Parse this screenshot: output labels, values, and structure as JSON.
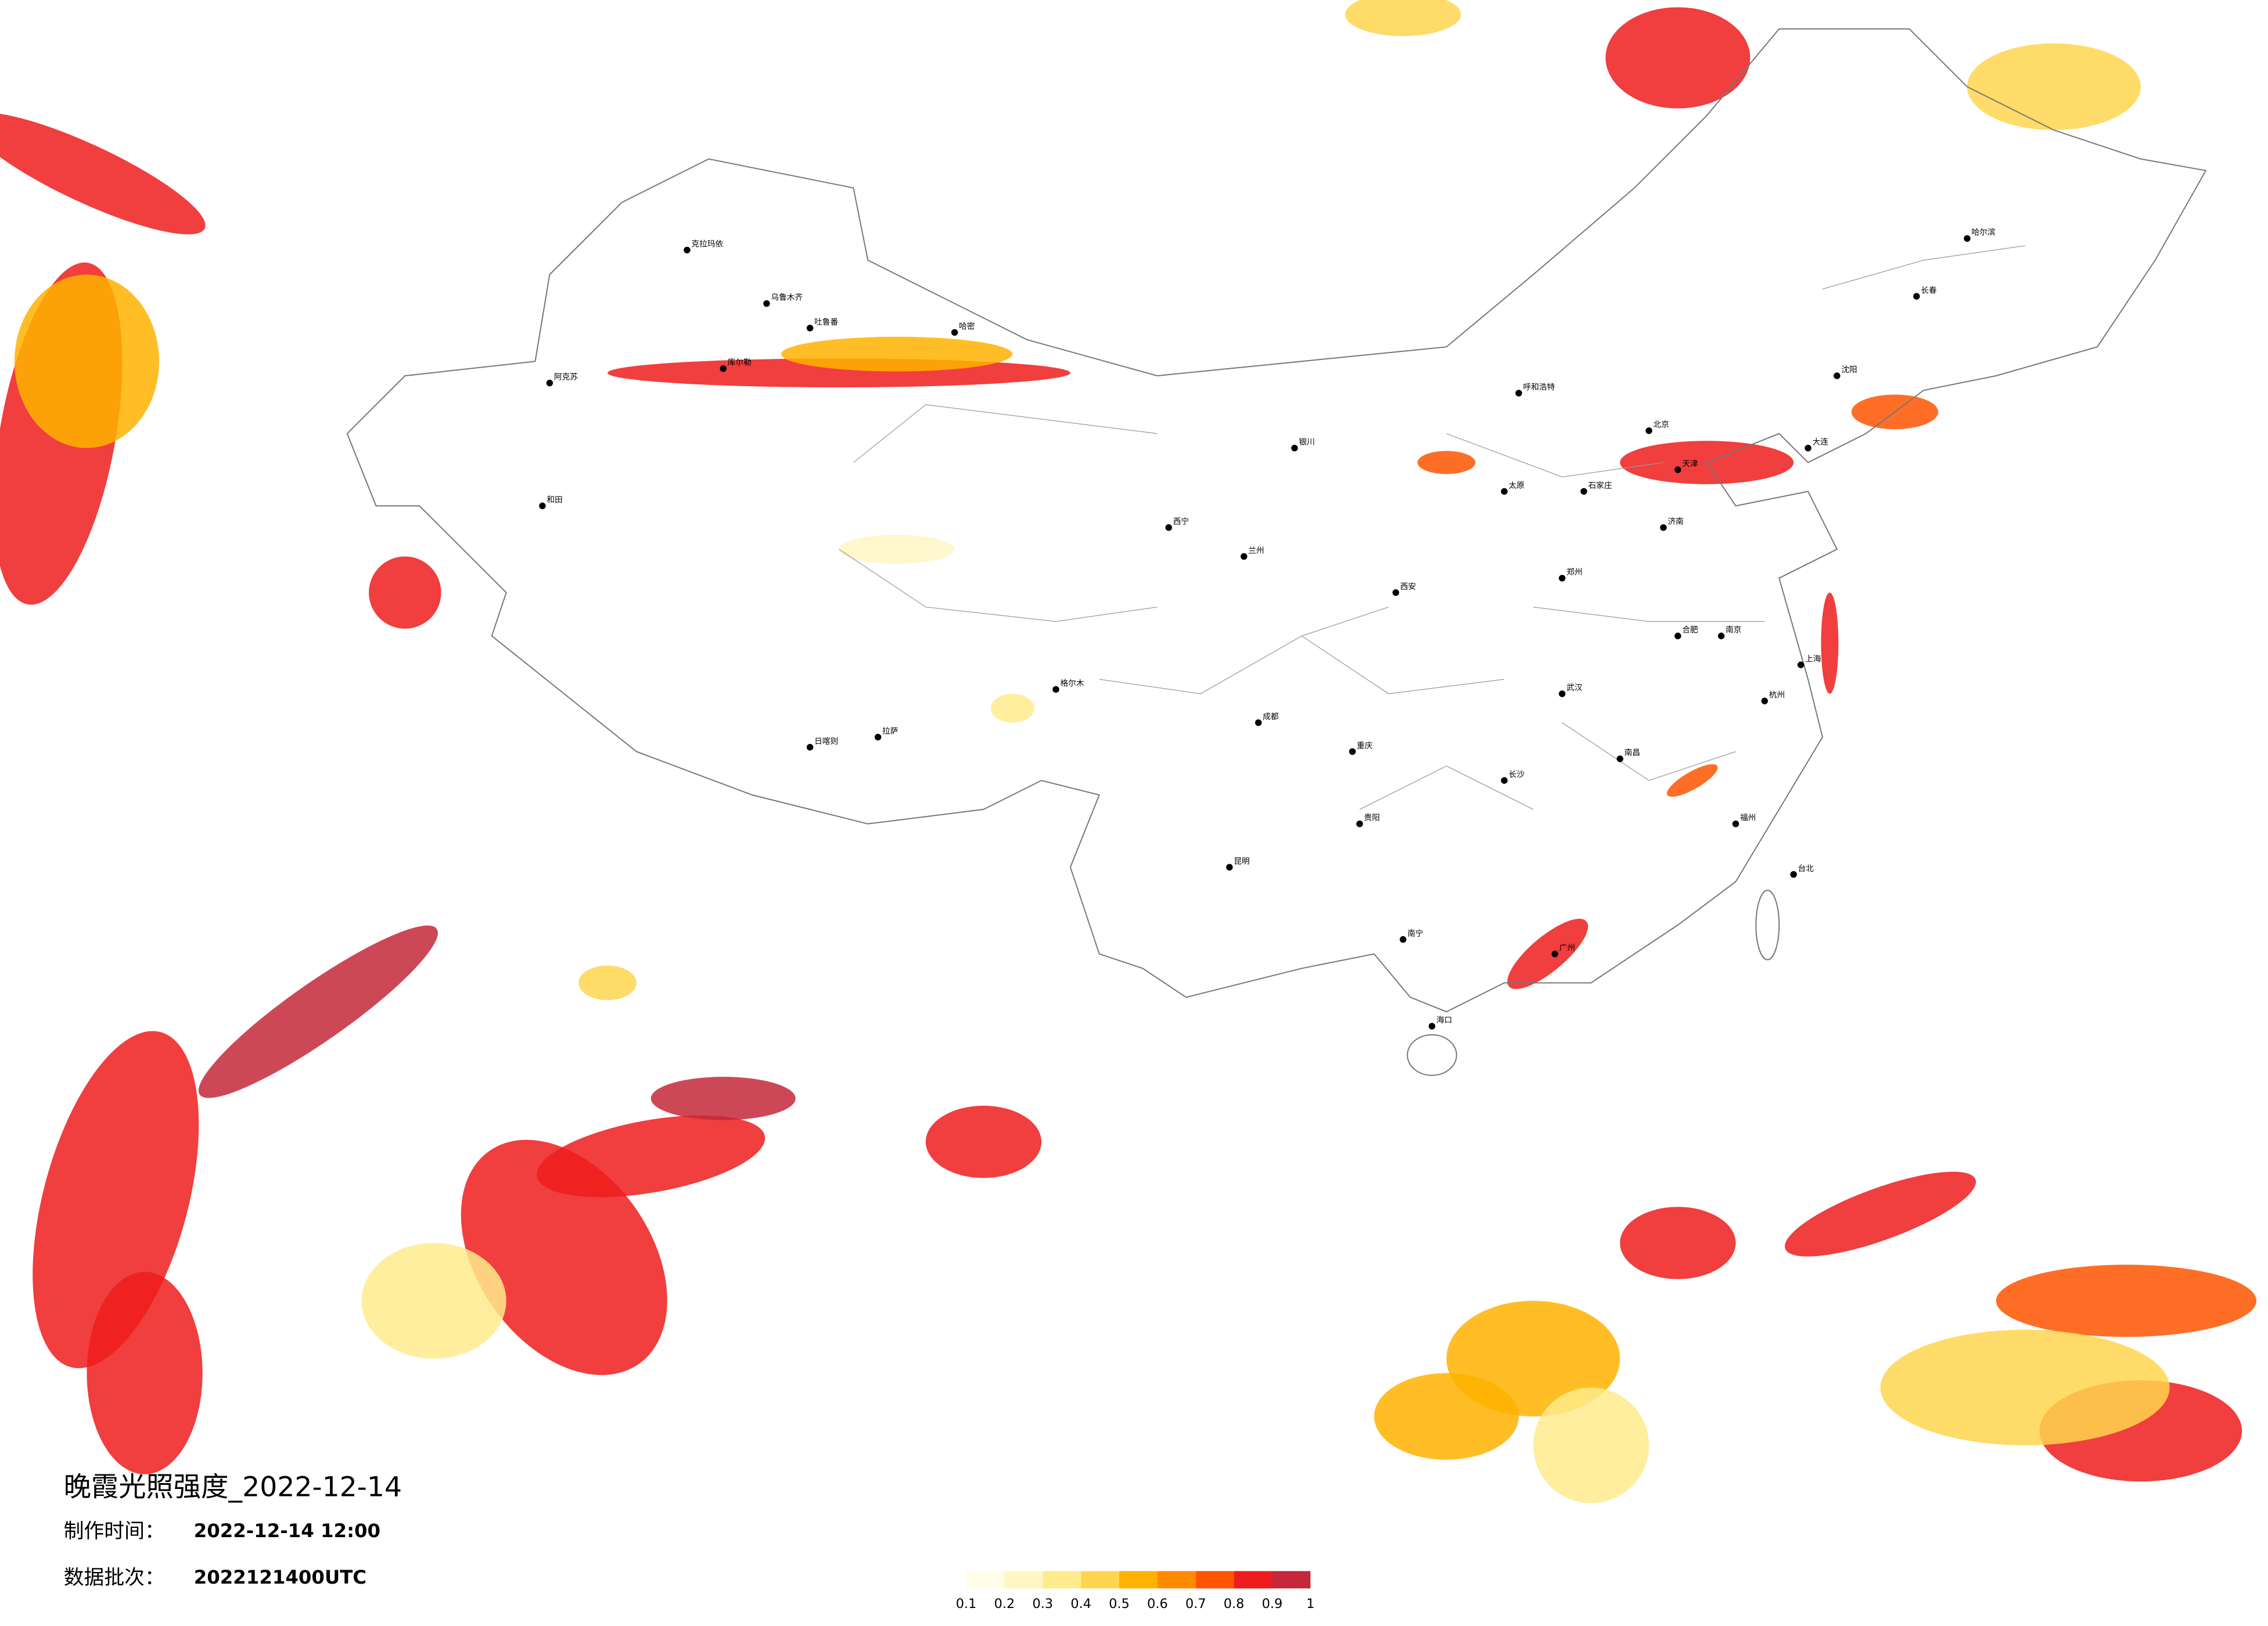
{
  "title": "晚霞光照强度_2022-12-14",
  "info": [
    {
      "label": "制作时间：",
      "value": "2022-12-14 12:00"
    },
    {
      "label": "数据批次：",
      "value": "2022121400UTC"
    }
  ],
  "legend": {
    "colors": [
      "#fffde6",
      "#fff6c4",
      "#ffeb8c",
      "#ffd54f",
      "#ffb300",
      "#ff8a00",
      "#ff5500",
      "#ee1c1c",
      "#c4283a"
    ],
    "ticks": [
      0.1,
      0.2,
      0.3,
      0.4,
      0.5,
      0.6,
      0.7,
      0.8,
      0.9,
      1
    ]
  },
  "cities": [
    "乌鲁木齐",
    "克拉玛依",
    "哈密",
    "吐鲁番",
    "库尔勒",
    "阿克苏",
    "和田",
    "拉萨",
    "日喀则",
    "格尔木",
    "西宁",
    "兰州",
    "银川",
    "呼和浩特",
    "北京",
    "天津",
    "石家庄",
    "太原",
    "济南",
    "郑州",
    "西安",
    "成都",
    "重庆",
    "武汉",
    "长沙",
    "南昌",
    "合肥",
    "南京",
    "上海",
    "杭州",
    "福州",
    "广州",
    "南宁",
    "昆明",
    "贵阳",
    "海口",
    "哈尔滨",
    "长春",
    "沈阳",
    "大连",
    "台北"
  ]
}
